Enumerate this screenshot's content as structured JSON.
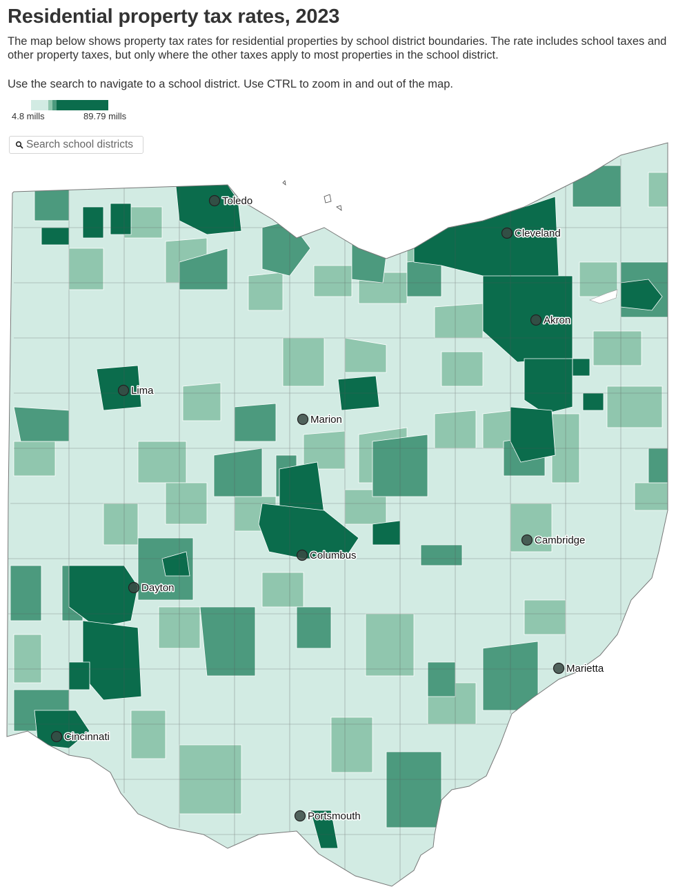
{
  "header": {
    "title": "Residential property tax rates, 2023",
    "description": "The map below shows property tax rates for residential properties by school district boundaries. The rate includes school taxes and other property taxes, but only where the other taxes apply to most properties in the school district.",
    "instructions": "Use the search to navigate to a school district. Use CTRL to zoom in and out of the map."
  },
  "legend": {
    "min_label": "4.8 mills",
    "max_label": "89.79 mills",
    "colors": [
      "#d2ebe3",
      "#90c6ae",
      "#4c9a7e",
      "#0b6c4c"
    ],
    "stops": [
      0.0,
      0.22,
      0.32,
      0.36
    ]
  },
  "search": {
    "placeholder": "Search school districts",
    "icon": "search-icon"
  },
  "map": {
    "region": "Ohio",
    "cities": [
      {
        "name": "Toledo"
      },
      {
        "name": "Cleveland"
      },
      {
        "name": "Akron"
      },
      {
        "name": "Lima"
      },
      {
        "name": "Marion"
      },
      {
        "name": "Columbus"
      },
      {
        "name": "Cambridge"
      },
      {
        "name": "Dayton"
      },
      {
        "name": "Marietta"
      },
      {
        "name": "Cincinnati"
      },
      {
        "name": "Portsmouth"
      }
    ]
  }
}
